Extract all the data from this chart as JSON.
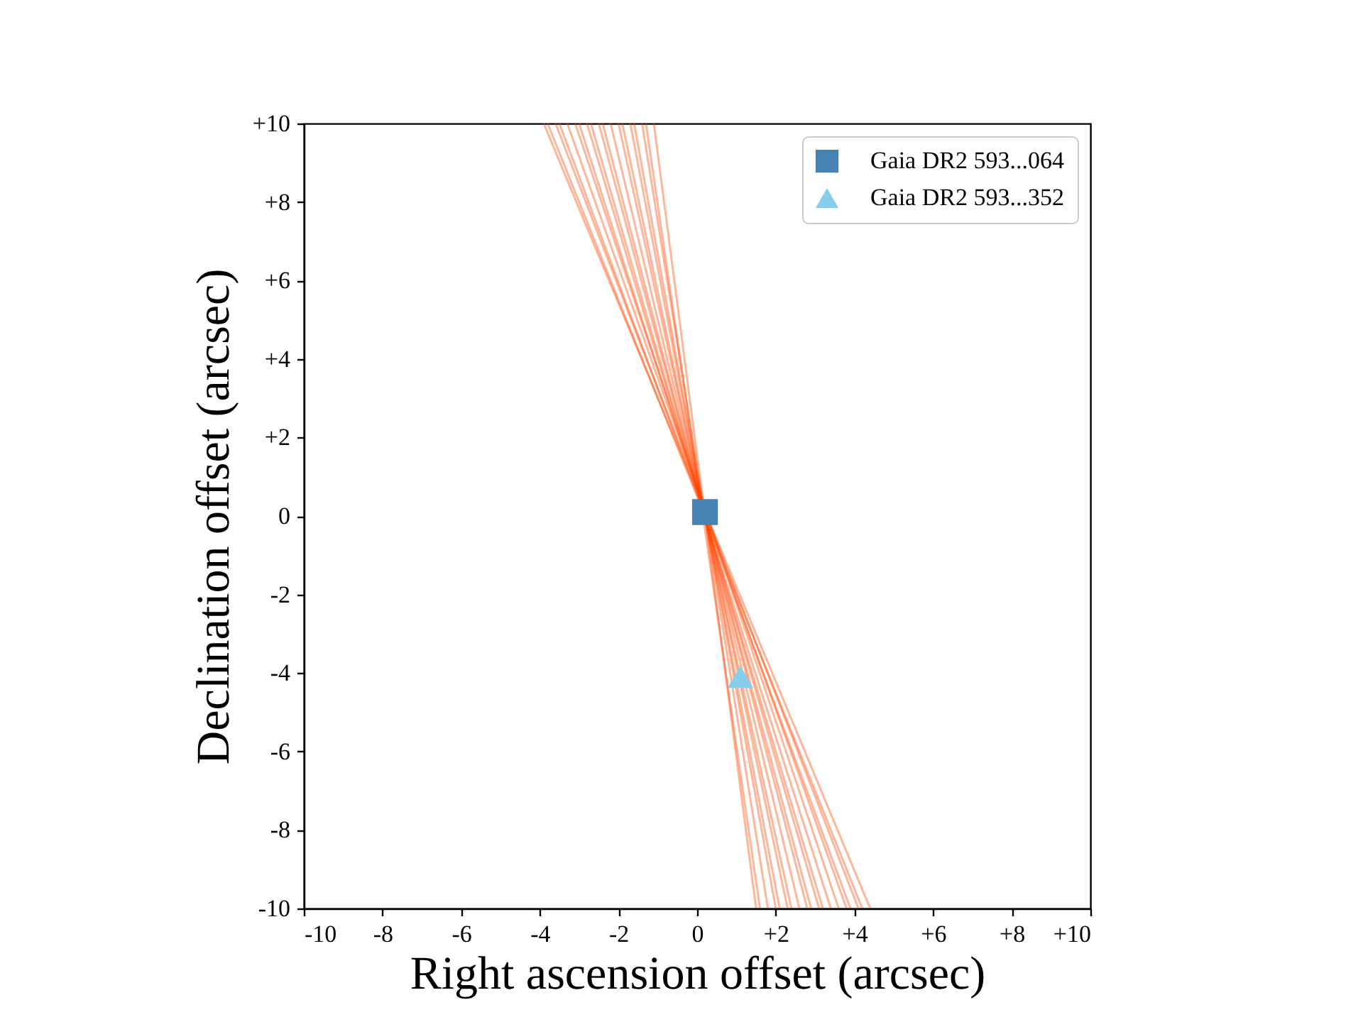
{
  "chart_data": {
    "type": "scatter",
    "xlabel": "Right ascension offset (arcsec)",
    "ylabel": "Declination offset (arcsec)",
    "xlim": [
      -10,
      10
    ],
    "ylim": [
      -10,
      10
    ],
    "xticks": [
      -10,
      -8,
      -6,
      -4,
      -2,
      0,
      {
        "value": 2,
        "label": "+2"
      },
      {
        "value": 4,
        "label": "+4"
      },
      {
        "value": 6,
        "label": "+6"
      },
      {
        "value": 8,
        "label": "+8"
      },
      {
        "value": 10,
        "label": "+10"
      }
    ],
    "yticks": [
      -10,
      -8,
      -6,
      -4,
      -2,
      0,
      {
        "value": 2,
        "label": "+2"
      },
      {
        "value": 4,
        "label": "+4"
      },
      {
        "value": 6,
        "label": "+6"
      },
      {
        "value": 8,
        "label": "+8"
      },
      {
        "value": 10,
        "label": "+10"
      }
    ],
    "grid": false,
    "legend": "top right",
    "series": [
      {
        "type": "line",
        "color": "#ff4500",
        "x": [
          -3.9,
          4.4
        ],
        "values": [
          10,
          -10
        ]
      },
      {
        "type": "line",
        "color": "#ff4500",
        "x": [
          -3.8,
          4.2
        ],
        "values": [
          10,
          -10
        ]
      },
      {
        "type": "line",
        "color": "#ff4500",
        "x": [
          -3.6,
          4.1
        ],
        "values": [
          10,
          -10
        ]
      },
      {
        "type": "line",
        "color": "#ff4500",
        "x": [
          -3.5,
          3.9
        ],
        "values": [
          10,
          -10
        ]
      },
      {
        "type": "line",
        "color": "#ff4500",
        "x": [
          -3.3,
          3.8
        ],
        "values": [
          10,
          -10
        ]
      },
      {
        "type": "line",
        "color": "#ff4500",
        "x": [
          -3.1,
          3.6
        ],
        "values": [
          10,
          -10
        ]
      },
      {
        "type": "line",
        "color": "#ff4500",
        "x": [
          -3.0,
          3.4
        ],
        "values": [
          10,
          -10
        ]
      },
      {
        "type": "line",
        "color": "#ff4500",
        "x": [
          -2.8,
          3.2
        ],
        "values": [
          10,
          -10
        ]
      },
      {
        "type": "line",
        "color": "#ff4500",
        "x": [
          -2.7,
          3.1
        ],
        "values": [
          10,
          -10
        ]
      },
      {
        "type": "line",
        "color": "#ff4500",
        "x": [
          -2.5,
          2.9
        ],
        "values": [
          10,
          -10
        ]
      },
      {
        "type": "line",
        "color": "#ff4500",
        "x": [
          -2.4,
          2.8
        ],
        "values": [
          10,
          -10
        ]
      },
      {
        "type": "line",
        "color": "#ff4500",
        "x": [
          -2.2,
          2.6
        ],
        "values": [
          10,
          -10
        ]
      },
      {
        "type": "line",
        "color": "#ff4500",
        "x": [
          -2.0,
          2.4
        ],
        "values": [
          10,
          -10
        ]
      },
      {
        "type": "line",
        "color": "#ff4500",
        "x": [
          -1.9,
          2.3
        ],
        "values": [
          10,
          -10
        ]
      },
      {
        "type": "line",
        "color": "#ff4500",
        "x": [
          -1.7,
          2.1
        ],
        "values": [
          10,
          -10
        ]
      },
      {
        "type": "line",
        "color": "#ff4500",
        "x": [
          -1.6,
          2.0
        ],
        "values": [
          10,
          -10
        ]
      },
      {
        "type": "line",
        "color": "#ff4500",
        "x": [
          -1.4,
          1.8
        ],
        "values": [
          10,
          -10
        ]
      },
      {
        "type": "line",
        "color": "#ff4500",
        "x": [
          -1.3,
          1.6
        ],
        "values": [
          10,
          -10
        ]
      },
      {
        "type": "line",
        "color": "#ff4500",
        "x": [
          -1.1,
          1.5
        ],
        "values": [
          10,
          -10
        ]
      },
      {
        "name": "Gaia DR2 593...064",
        "color": "#4682b4",
        "marker": "square",
        "x": [
          0.2
        ],
        "values": [
          0.1
        ]
      },
      {
        "name": "Gaia DR2 593...352",
        "color": "#87ceeb",
        "marker": "triangle",
        "x": [
          1.1
        ],
        "values": [
          -4.1
        ]
      }
    ]
  }
}
